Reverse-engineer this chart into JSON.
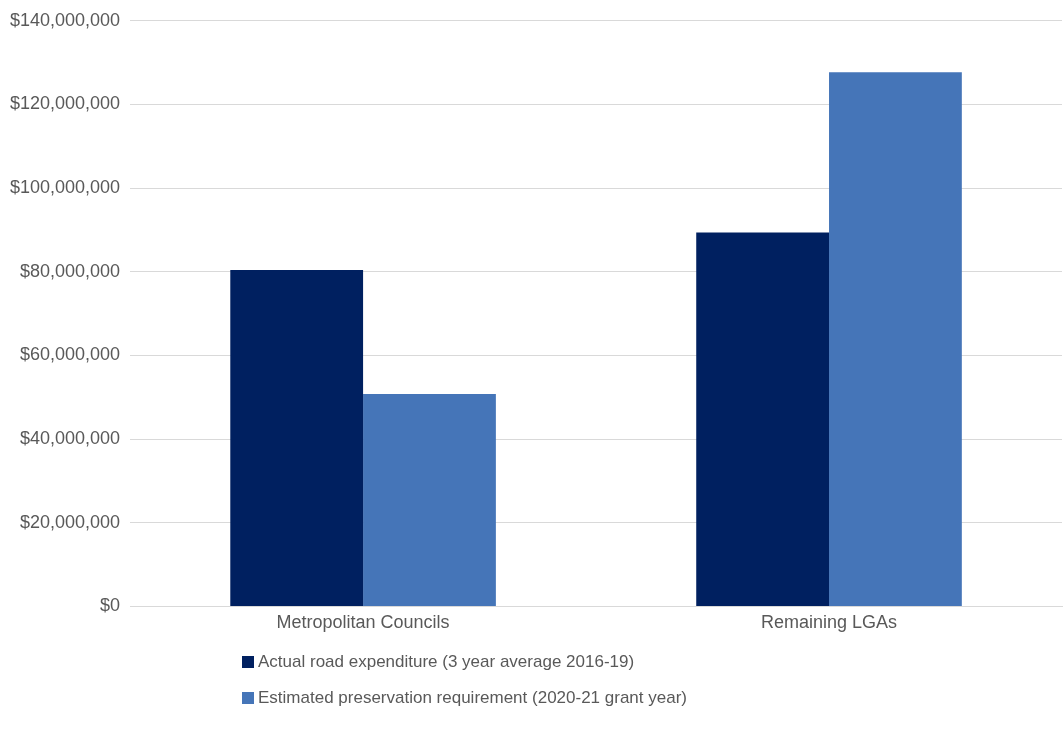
{
  "chart_data": {
    "type": "bar",
    "categories": [
      "Metropolitan Councils",
      "Remaining LGAs"
    ],
    "series": [
      {
        "name": "Actual road expenditure (3 year average 2016-19)",
        "color": "#002060",
        "values": [
          80400000,
          89400000
        ]
      },
      {
        "name": "Estimated preservation requirement (2020-21 grant year)",
        "color": "#4575b8",
        "values": [
          50800000,
          127700000
        ]
      }
    ],
    "ylim": [
      0,
      140000000
    ],
    "yticks": [
      {
        "value": 0,
        "label": "$0"
      },
      {
        "value": 20000000,
        "label": "$20,000,000"
      },
      {
        "value": 40000000,
        "label": "$40,000,000"
      },
      {
        "value": 60000000,
        "label": "$60,000,000"
      },
      {
        "value": 80000000,
        "label": "$80,000,000"
      },
      {
        "value": 100000000,
        "label": "$100,000,000"
      },
      {
        "value": 120000000,
        "label": "$120,000,000"
      },
      {
        "value": 140000000,
        "label": "$140,000,000"
      }
    ],
    "grid": "y",
    "legend": "bottom"
  }
}
